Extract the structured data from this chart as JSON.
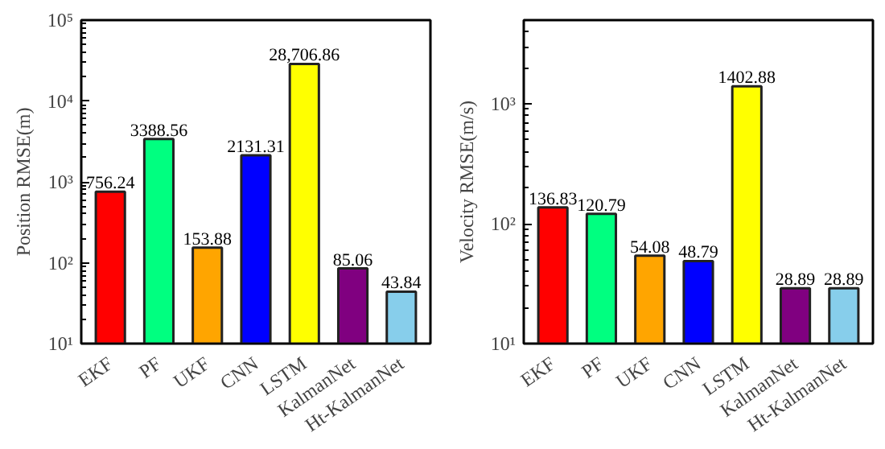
{
  "chart_data": [
    {
      "type": "bar",
      "ylabel": "Position RMSE(m)",
      "categories": [
        "EKF",
        "PF",
        "UKF",
        "CNN",
        "LSTM",
        "KalmanNet",
        "Ht-KalmanNet"
      ],
      "values": [
        756.24,
        3388.56,
        153.88,
        2131.31,
        28706.86,
        85.06,
        43.84
      ],
      "value_labels": [
        "756.24",
        "3388.56",
        "153.88",
        "2131.31",
        "28,706.86",
        "85.06",
        "43.84"
      ],
      "colors": [
        "#ff0000",
        "#00ff80",
        "#ffa500",
        "#0000ff",
        "#ffff00",
        "#800080",
        "#87ceeb"
      ],
      "log": true,
      "ylim": [
        10,
        100000
      ],
      "yticks": [
        {
          "value": 10,
          "label": "10¹"
        },
        {
          "value": 100,
          "label": "10²"
        },
        {
          "value": 1000,
          "label": "10³"
        },
        {
          "value": 10000,
          "label": "10⁴"
        },
        {
          "value": 100000,
          "label": "10⁵"
        }
      ],
      "grid": false
    },
    {
      "type": "bar",
      "ylabel": "Velocity RMSE(m/s)",
      "categories": [
        "EKF",
        "PF",
        "UKF",
        "CNN",
        "LSTM",
        "KalmanNet",
        "Ht-KalmanNet"
      ],
      "values": [
        136.83,
        120.79,
        54.08,
        48.79,
        1402.88,
        28.89,
        28.89
      ],
      "value_labels": [
        "136.83",
        "120.79",
        "54.08",
        "48.79",
        "1402.88",
        "28.89",
        "28.89"
      ],
      "colors": [
        "#ff0000",
        "#00ff80",
        "#ffa500",
        "#0000ff",
        "#ffff00",
        "#800080",
        "#87ceeb"
      ],
      "log": true,
      "ylim": [
        10,
        5000
      ],
      "yticks": [
        {
          "value": 10,
          "label": "10¹"
        },
        {
          "value": 100,
          "label": "10²"
        },
        {
          "value": 1000,
          "label": "10³"
        }
      ],
      "grid": false
    }
  ]
}
